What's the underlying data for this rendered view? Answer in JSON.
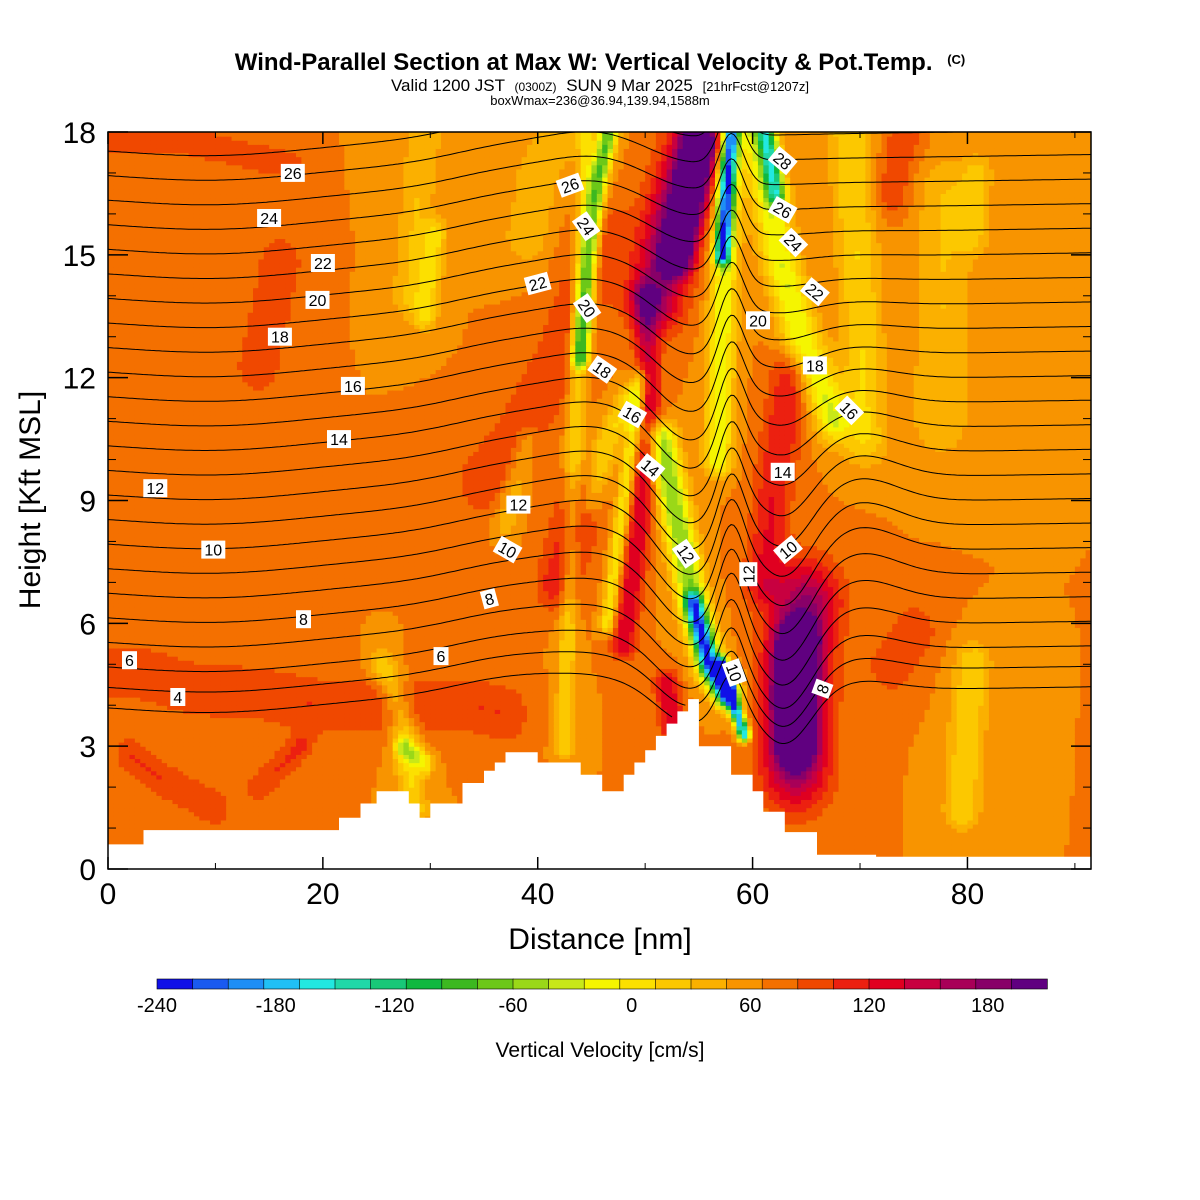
{
  "chart_data": {
    "type": "heatmap",
    "title": "Wind-Parallel Section at Max W: Vertical Velocity & Pot.Temp.",
    "title_mark": "(C)",
    "subtitle_parts": [
      "Valid 1200 JST",
      "(0300Z)",
      "SUN 9 Mar 2025",
      "[21hrFcst@1207z]"
    ],
    "subtitle2": "boxWmax=236@36.94,139.94,1588m",
    "xlabel": "Distance [nm]",
    "ylabel": "Height [Kft MSL]",
    "xlim": [
      0,
      91.5
    ],
    "ylim": [
      0,
      18
    ],
    "x_ticks": [
      0,
      20,
      40,
      60,
      80
    ],
    "y_ticks": [
      0,
      3,
      6,
      9,
      12,
      15,
      18
    ],
    "colorbar": {
      "label": "Vertical Velocity [cm/s]",
      "range": [
        -240,
        210
      ],
      "step": 15,
      "tick_values": [
        -240,
        -180,
        -120,
        -60,
        0,
        60,
        120,
        180
      ],
      "tick_labels": [
        "-240",
        "-180",
        "-120",
        "-60",
        "0",
        "60",
        "120",
        "180"
      ],
      "colors": [
        "#1010e8",
        "#1a5af0",
        "#1e8ef5",
        "#20c0f5",
        "#22e8e0",
        "#20d8a8",
        "#18c878",
        "#10b840",
        "#3cb820",
        "#6cc818",
        "#9ad818",
        "#c8e818",
        "#f5f500",
        "#fce000",
        "#fcc800",
        "#fbb000",
        "#f89400",
        "#f47000",
        "#f04800",
        "#ec2010",
        "#e00020",
        "#c80040",
        "#a80058",
        "#880068",
        "#600080"
      ]
    },
    "terrain_kft": {
      "x": [
        0,
        3.3,
        3.3,
        21.5,
        21.5,
        23.5,
        23.5,
        25,
        25,
        28,
        28,
        29,
        29,
        30,
        30,
        33,
        33,
        35,
        35,
        36,
        36,
        37,
        37,
        40,
        40,
        44,
        44,
        46,
        46,
        48,
        48,
        49,
        49,
        50,
        50,
        51,
        51,
        52,
        52,
        53,
        53,
        54,
        54,
        55,
        55,
        58,
        58,
        60,
        60,
        61,
        61,
        63,
        63,
        66,
        66,
        71.5,
        71.5,
        91.5
      ],
      "y": [
        0.6,
        0.6,
        0.95,
        0.95,
        1.25,
        1.25,
        1.6,
        1.6,
        1.9,
        1.9,
        1.6,
        1.6,
        1.25,
        1.25,
        1.6,
        1.6,
        2.1,
        2.1,
        2.4,
        2.4,
        2.6,
        2.6,
        2.85,
        2.85,
        2.6,
        2.6,
        2.3,
        2.3,
        1.9,
        1.9,
        2.3,
        2.3,
        2.6,
        2.6,
        2.9,
        2.9,
        3.25,
        3.25,
        3.55,
        3.55,
        3.85,
        3.85,
        4.15,
        4.15,
        3.0,
        3.0,
        2.3,
        2.3,
        1.9,
        1.9,
        1.4,
        1.4,
        0.9,
        0.9,
        0.35,
        0.35,
        0.3,
        0.3
      ]
    },
    "velocity_features": [
      {
        "x": [
          0,
          0,
          91.5,
          91.5
        ],
        "y": [
          0,
          18,
          18,
          0
        ],
        "w": 15
      },
      {
        "x": [
          0,
          3,
          8,
          14,
          20,
          26,
          30,
          34,
          37
        ],
        "y": [
          4.8,
          4.8,
          4.4,
          4.3,
          4.0,
          4.0,
          4.0,
          4.0,
          3.8
        ],
        "r": 1.6,
        "w": 30
      },
      {
        "x": [
          0,
          7,
          17
        ],
        "y": [
          17.8,
          17.8,
          17.2
        ],
        "r": 0.8,
        "w": 30
      },
      {
        "x": [
          2,
          5,
          10
        ],
        "y": [
          2.8,
          2.2,
          1.5
        ],
        "r": 1.0,
        "w": 30
      },
      {
        "x": [
          14,
          15,
          16
        ],
        "y": [
          12.3,
          13.5,
          14.8
        ],
        "r": 1.5,
        "w": 30
      },
      {
        "x": [
          35,
          38,
          42,
          46
        ],
        "y": [
          9.5,
          10.5,
          12.5,
          15.5
        ],
        "r": 1.8,
        "w": 30
      },
      {
        "x": [
          14,
          16,
          18
        ],
        "y": [
          2.0,
          2.5,
          3.0
        ],
        "r": 0.8,
        "w": 30
      },
      {
        "x": [
          28.5,
          27.5,
          26.5,
          25.5
        ],
        "y": [
          1.5,
          3.5,
          4.5,
          5.0
        ],
        "r": 0.9,
        "w": -45
      },
      {
        "x": [
          27.5,
          28.5,
          29.5
        ],
        "y": [
          3.0,
          2.8,
          2.6
        ],
        "r": 0.6,
        "w": -60
      },
      {
        "x": [
          28,
          28.5,
          29,
          29.5
        ],
        "y": [
          14,
          15.5,
          17,
          18
        ],
        "r": 1.2,
        "w": -30
      },
      {
        "x": [
          29.5,
          30,
          30.5
        ],
        "y": [
          13.5,
          14.5,
          15.5
        ],
        "r": 0.8,
        "w": -45
      },
      {
        "x": [
          39,
          40,
          42
        ],
        "y": [
          15.5,
          17,
          18
        ],
        "r": 1.5,
        "w": -30
      },
      {
        "x": [
          37,
          38,
          39
        ],
        "y": [
          8.5,
          9.5,
          10.5
        ],
        "r": 0.8,
        "w": -30
      },
      {
        "x": [
          42.5,
          42.8,
          43.4,
          44.0,
          44.6
        ],
        "y": [
          3.0,
          6.0,
          10.0,
          14.0,
          18.0
        ],
        "r": 0.6,
        "w": -45
      },
      {
        "x": [
          44,
          44.8,
          45.6,
          46.6
        ],
        "y": [
          12.5,
          15.0,
          16.8,
          18.0
        ],
        "r": 0.6,
        "w": -120
      },
      {
        "x": [
          45,
          46.5,
          48.5
        ],
        "y": [
          9,
          10.5,
          11.5
        ],
        "r": 0.8,
        "w": -45
      },
      {
        "x": [
          46.5,
          48.0,
          49.5
        ],
        "y": [
          6.0,
          9.0,
          12.0
        ],
        "r": 0.5,
        "w": -60
      },
      {
        "x": [
          51.5,
          53.0,
          54.5,
          56.0,
          57.5
        ],
        "y": [
          10.5,
          8.5,
          6.5,
          5.0,
          4.4
        ],
        "r": 1.0,
        "w": -105
      },
      {
        "x": [
          54.5,
          56.0,
          57.5
        ],
        "y": [
          6.5,
          5.0,
          4.3
        ],
        "r": 0.6,
        "w": -150
      },
      {
        "x": [
          57.0,
          58.3,
          59.2
        ],
        "y": [
          5.0,
          4.0,
          3.3
        ],
        "r": 0.4,
        "w": -210
      },
      {
        "x": [
          56.8,
          57.2,
          57.6,
          58.0
        ],
        "y": [
          10.0,
          13.5,
          16.0,
          18.0
        ],
        "r": 0.9,
        "w": -75
      },
      {
        "x": [
          57.2,
          57.7,
          58.0
        ],
        "y": [
          15.0,
          17.0,
          18.0
        ],
        "r": 0.5,
        "w": -180
      },
      {
        "x": [
          60.5,
          62.5,
          64.5,
          66.0,
          67.5
        ],
        "y": [
          18.0,
          15.0,
          13.0,
          12.0,
          11.0
        ],
        "r": 1.2,
        "w": -75
      },
      {
        "x": [
          61.2,
          62.2
        ],
        "y": [
          18.0,
          16.5
        ],
        "r": 0.6,
        "w": -120
      },
      {
        "x": [
          69.0,
          69.5,
          70.0,
          70.5
        ],
        "y": [
          18.0,
          16.0,
          14.0,
          10.5
        ],
        "r": 1.4,
        "w": -45
      },
      {
        "x": [
          77.5,
          78.0
        ],
        "y": [
          11.0,
          16.5
        ],
        "r": 2.0,
        "w": -30
      },
      {
        "x": [
          79.5,
          80.0,
          80.5
        ],
        "y": [
          1.5,
          3.5,
          5.0
        ],
        "r": 1.2,
        "w": -45
      },
      {
        "x": [
          80.5,
          81.0
        ],
        "y": [
          15.5,
          17.0
        ],
        "r": 1.0,
        "w": -30
      },
      {
        "x": [
          48,
          49.5,
          50.5,
          50
        ],
        "y": [
          5.5,
          8.5,
          11.0,
          14.0
        ],
        "r": 0.8,
        "w": 60
      },
      {
        "x": [
          42.0,
          44.0
        ],
        "y": [
          7.0,
          9.0
        ],
        "r": 1.5,
        "w": 45
      },
      {
        "x": [
          51.0,
          52.5,
          54.0,
          55.0
        ],
        "y": [
          14.0,
          16.0,
          17.2,
          18.0
        ],
        "r": 1.8,
        "w": 90
      },
      {
        "x": [
          53.0,
          54.2,
          55.0
        ],
        "y": [
          15.0,
          16.5,
          17.7
        ],
        "r": 1.0,
        "w": 135
      },
      {
        "x": [
          53.0,
          52.0
        ],
        "y": [
          2.8,
          4.5
        ],
        "r": 0.8,
        "w": 60
      },
      {
        "x": [
          61.0,
          62.0,
          63.5
        ],
        "y": [
          7.0,
          9.5,
          12.0
        ],
        "r": 1.3,
        "w": 45
      },
      {
        "x": [
          64.0,
          64.0,
          64.3,
          65.0
        ],
        "y": [
          2.5,
          4.0,
          5.5,
          6.5
        ],
        "r": 2.2,
        "w": 90
      },
      {
        "x": [
          64.0,
          64.0,
          64.2
        ],
        "y": [
          3.2,
          4.5,
          5.5
        ],
        "r": 1.3,
        "w": 150
      },
      {
        "x": [
          63.5,
          63.8
        ],
        "y": [
          4.2,
          5.0
        ],
        "r": 0.7,
        "w": 195
      },
      {
        "x": [
          73.0,
          75.0
        ],
        "y": [
          5.0,
          5.8
        ],
        "r": 1.5,
        "w": 30
      },
      {
        "x": [
          73,
          74
        ],
        "y": [
          16.5,
          17.8
        ],
        "r": 1.2,
        "w": 30
      }
    ],
    "theta_levels": [
      4,
      5,
      6,
      7,
      8,
      9,
      10,
      11,
      12,
      13,
      14,
      15,
      16,
      17,
      18,
      19,
      20,
      21,
      22,
      23,
      24,
      25,
      26,
      27,
      28
    ],
    "theta_base_kft": [
      4.1,
      4.6,
      5.1,
      5.7,
      6.3,
      6.9,
      7.5,
      8.1,
      8.7,
      9.3,
      9.9,
      10.5,
      11.1,
      11.7,
      12.3,
      12.9,
      13.5,
      14.1,
      14.7,
      15.3,
      15.9,
      16.5,
      17.1,
      17.7,
      18.3
    ],
    "theta_labels": [
      {
        "text": "4",
        "x": 6.5,
        "y": 4.2,
        "angle": 0
      },
      {
        "text": "6",
        "x": 2.0,
        "y": 5.1,
        "angle": 0
      },
      {
        "text": "8",
        "x": 18.2,
        "y": 6.1,
        "angle": 0
      },
      {
        "text": "10",
        "x": 9.8,
        "y": 7.8,
        "angle": 0
      },
      {
        "text": "12",
        "x": 4.4,
        "y": 9.3,
        "angle": 0
      },
      {
        "text": "14",
        "x": 21.5,
        "y": 10.5,
        "angle": 0
      },
      {
        "text": "16",
        "x": 22.8,
        "y": 11.8,
        "angle": 0
      },
      {
        "text": "18",
        "x": 16.0,
        "y": 13.0,
        "angle": 0
      },
      {
        "text": "20",
        "x": 19.5,
        "y": 13.9,
        "angle": 0
      },
      {
        "text": "22",
        "x": 20.0,
        "y": 14.8,
        "angle": 0
      },
      {
        "text": "24",
        "x": 15.0,
        "y": 15.9,
        "angle": 0
      },
      {
        "text": "26",
        "x": 17.2,
        "y": 17.0,
        "angle": 0
      },
      {
        "text": "6",
        "x": 31.0,
        "y": 5.2,
        "angle": 0
      },
      {
        "text": "8",
        "x": 35.5,
        "y": 6.6,
        "angle": -15
      },
      {
        "text": "10",
        "x": 37.2,
        "y": 7.8,
        "angle": 30
      },
      {
        "text": "12",
        "x": 38.2,
        "y": 8.9,
        "angle": 0
      },
      {
        "text": "22",
        "x": 40.0,
        "y": 14.3,
        "angle": -15
      },
      {
        "text": "26",
        "x": 43.0,
        "y": 16.7,
        "angle": -20
      },
      {
        "text": "24",
        "x": 44.5,
        "y": 15.7,
        "angle": 55
      },
      {
        "text": "20",
        "x": 44.6,
        "y": 13.7,
        "angle": 55
      },
      {
        "text": "18",
        "x": 46.0,
        "y": 12.2,
        "angle": 35
      },
      {
        "text": "16",
        "x": 48.8,
        "y": 11.1,
        "angle": 30
      },
      {
        "text": "14",
        "x": 50.5,
        "y": 9.8,
        "angle": 40
      },
      {
        "text": "12",
        "x": 53.8,
        "y": 7.7,
        "angle": 55
      },
      {
        "text": "10",
        "x": 58.3,
        "y": 4.8,
        "angle": 70
      },
      {
        "text": "12",
        "x": 59.6,
        "y": 7.2,
        "angle": -90
      },
      {
        "text": "10",
        "x": 63.3,
        "y": 7.8,
        "angle": -40
      },
      {
        "text": "14",
        "x": 62.8,
        "y": 9.7,
        "angle": 0
      },
      {
        "text": "20",
        "x": 60.5,
        "y": 13.4,
        "angle": 0
      },
      {
        "text": "18",
        "x": 65.8,
        "y": 12.3,
        "angle": 0
      },
      {
        "text": "16",
        "x": 69.0,
        "y": 11.2,
        "angle": 45
      },
      {
        "text": "22",
        "x": 65.8,
        "y": 14.1,
        "angle": 40
      },
      {
        "text": "24",
        "x": 63.8,
        "y": 15.3,
        "angle": 45
      },
      {
        "text": "26",
        "x": 62.8,
        "y": 16.1,
        "angle": 30
      },
      {
        "text": "28",
        "x": 62.8,
        "y": 17.3,
        "angle": 40
      },
      {
        "text": "8",
        "x": 66.5,
        "y": 4.4,
        "angle": -70
      }
    ]
  }
}
